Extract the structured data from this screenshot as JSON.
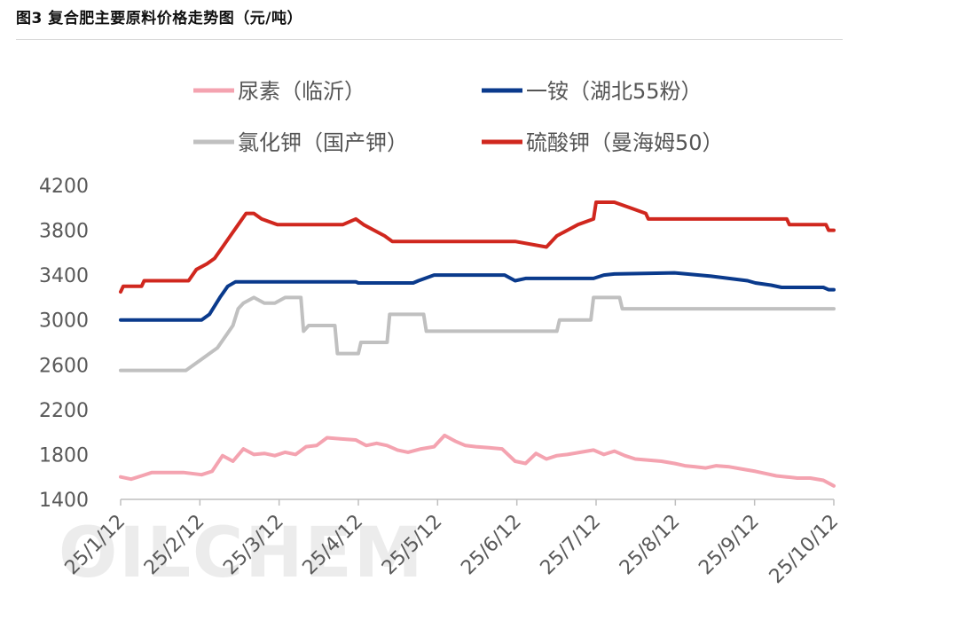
{
  "figure_title": "图3 复合肥主要原料价格走势图（元/吨）",
  "watermark": "OILCHEM",
  "chart_data": {
    "type": "line",
    "title": "图3 复合肥主要原料价格走势图（元/吨）",
    "xlabel": "",
    "ylabel": "",
    "ylim": [
      1400,
      4200
    ],
    "yticks": [
      1400,
      1800,
      2200,
      2600,
      3000,
      3400,
      3800,
      4200
    ],
    "x_range": [
      "2025-01-12",
      "2025-10-12"
    ],
    "x_tick_labels": [
      "25/1/12",
      "25/2/12",
      "25/3/12",
      "25/4/12",
      "25/5/12",
      "25/6/12",
      "25/7/12",
      "25/8/12",
      "25/9/12",
      "25/10/12"
    ],
    "grid": false,
    "legend_position": "top",
    "series": [
      {
        "name": "尿素（临沂）",
        "color": "#F4A3B0",
        "x": [
          "2025-01-12",
          "2025-01-16",
          "2025-01-20",
          "2025-01-24",
          "2025-01-27",
          "2025-02-05",
          "2025-02-12",
          "2025-02-16",
          "2025-02-20",
          "2025-02-24",
          "2025-02-28",
          "2025-03-04",
          "2025-03-08",
          "2025-03-12",
          "2025-03-16",
          "2025-03-20",
          "2025-03-24",
          "2025-03-28",
          "2025-04-01",
          "2025-04-06",
          "2025-04-12",
          "2025-04-16",
          "2025-04-20",
          "2025-04-24",
          "2025-04-28",
          "2025-05-02",
          "2025-05-07",
          "2025-05-12",
          "2025-05-16",
          "2025-05-20",
          "2025-05-24",
          "2025-05-28",
          "2025-06-02",
          "2025-06-07",
          "2025-06-12",
          "2025-06-16",
          "2025-06-20",
          "2025-06-24",
          "2025-06-28",
          "2025-07-02",
          "2025-07-07",
          "2025-07-12",
          "2025-07-16",
          "2025-07-20",
          "2025-07-24",
          "2025-07-28",
          "2025-08-02",
          "2025-08-07",
          "2025-08-12",
          "2025-08-16",
          "2025-08-20",
          "2025-08-24",
          "2025-08-28",
          "2025-09-02",
          "2025-09-07",
          "2025-09-12",
          "2025-09-16",
          "2025-09-20",
          "2025-09-24",
          "2025-09-28",
          "2025-10-03",
          "2025-10-08",
          "2025-10-12"
        ],
        "values": [
          1600,
          1580,
          1610,
          1640,
          1640,
          1640,
          1620,
          1650,
          1790,
          1740,
          1850,
          1800,
          1810,
          1790,
          1820,
          1800,
          1870,
          1880,
          1950,
          1940,
          1930,
          1880,
          1900,
          1880,
          1840,
          1820,
          1850,
          1870,
          1970,
          1920,
          1880,
          1870,
          1860,
          1850,
          1740,
          1720,
          1810,
          1760,
          1790,
          1800,
          1820,
          1840,
          1800,
          1830,
          1790,
          1760,
          1750,
          1740,
          1720,
          1700,
          1690,
          1680,
          1700,
          1690,
          1670,
          1650,
          1630,
          1610,
          1600,
          1590,
          1590,
          1570,
          1520
        ]
      },
      {
        "name": "一铵（湖北55粉）",
        "color": "#0A3A8C",
        "x": [
          "2025-01-12",
          "2025-02-12",
          "2025-02-15",
          "2025-02-19",
          "2025-02-22",
          "2025-02-25",
          "2025-03-12",
          "2025-04-12",
          "2025-04-13",
          "2025-05-04",
          "2025-05-06",
          "2025-05-12",
          "2025-06-08",
          "2025-06-12",
          "2025-06-16",
          "2025-07-12",
          "2025-07-16",
          "2025-07-20",
          "2025-08-12",
          "2025-08-26",
          "2025-09-09",
          "2025-09-12",
          "2025-09-18",
          "2025-09-22",
          "2025-10-08",
          "2025-10-10",
          "2025-10-12"
        ],
        "values": [
          3000,
          3000,
          3050,
          3200,
          3300,
          3340,
          3340,
          3340,
          3330,
          3330,
          3350,
          3400,
          3400,
          3350,
          3370,
          3370,
          3400,
          3410,
          3420,
          3390,
          3350,
          3330,
          3310,
          3290,
          3290,
          3270,
          3270
        ]
      },
      {
        "name": "氯化钾（国产钾）",
        "color": "#C0C0C0",
        "x": [
          "2025-01-12",
          "2025-02-06",
          "2025-02-09",
          "2025-02-12",
          "2025-02-15",
          "2025-02-18",
          "2025-02-21",
          "2025-02-24",
          "2025-02-26",
          "2025-02-28",
          "2025-03-04",
          "2025-03-08",
          "2025-03-12",
          "2025-03-16",
          "2025-03-22",
          "2025-03-23",
          "2025-03-25",
          "2025-04-04",
          "2025-04-05",
          "2025-04-13",
          "2025-04-14",
          "2025-04-24",
          "2025-04-25",
          "2025-05-08",
          "2025-05-09",
          "2025-06-12",
          "2025-06-28",
          "2025-06-29",
          "2025-07-11",
          "2025-07-12",
          "2025-07-22",
          "2025-07-23",
          "2025-10-12"
        ],
        "values": [
          2550,
          2550,
          2600,
          2650,
          2700,
          2750,
          2850,
          2950,
          3100,
          3150,
          3200,
          3150,
          3150,
          3200,
          3200,
          2900,
          2950,
          2950,
          2700,
          2700,
          2800,
          2800,
          3050,
          3050,
          2900,
          2900,
          2900,
          3000,
          3000,
          3200,
          3200,
          3100,
          3100
        ]
      },
      {
        "name": "硫酸钾（曼海姆50）",
        "color": "#D0271E",
        "x": [
          "2025-01-12",
          "2025-01-13",
          "2025-01-20",
          "2025-01-21",
          "2025-02-07",
          "2025-02-10",
          "2025-02-14",
          "2025-02-17",
          "2025-02-20",
          "2025-02-23",
          "2025-02-26",
          "2025-03-01",
          "2025-03-04",
          "2025-03-07",
          "2025-03-13",
          "2025-03-14",
          "2025-04-07",
          "2025-04-12",
          "2025-04-15",
          "2025-04-19",
          "2025-04-23",
          "2025-04-26",
          "2025-06-12",
          "2025-06-24",
          "2025-06-28",
          "2025-07-02",
          "2025-07-06",
          "2025-07-12",
          "2025-07-13",
          "2025-07-20",
          "2025-07-26",
          "2025-08-01",
          "2025-08-02",
          "2025-09-12",
          "2025-09-24",
          "2025-09-25",
          "2025-10-09",
          "2025-10-10",
          "2025-10-12"
        ],
        "values": [
          3250,
          3300,
          3300,
          3350,
          3350,
          3450,
          3500,
          3550,
          3650,
          3750,
          3850,
          3950,
          3950,
          3900,
          3850,
          3850,
          3850,
          3900,
          3850,
          3800,
          3750,
          3700,
          3700,
          3650,
          3750,
          3800,
          3850,
          3900,
          4050,
          4050,
          4000,
          3950,
          3900,
          3900,
          3900,
          3850,
          3850,
          3800,
          3800
        ]
      }
    ]
  }
}
